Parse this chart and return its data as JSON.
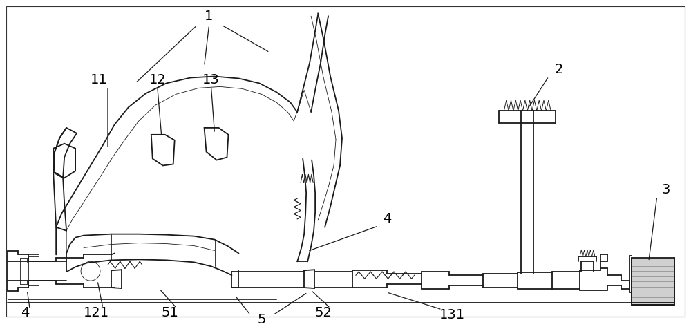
{
  "background_color": "#ffffff",
  "line_color": "#1a1a1a",
  "label_color": "#000000",
  "figsize": [
    10.0,
    4.76
  ],
  "dpi": 100
}
